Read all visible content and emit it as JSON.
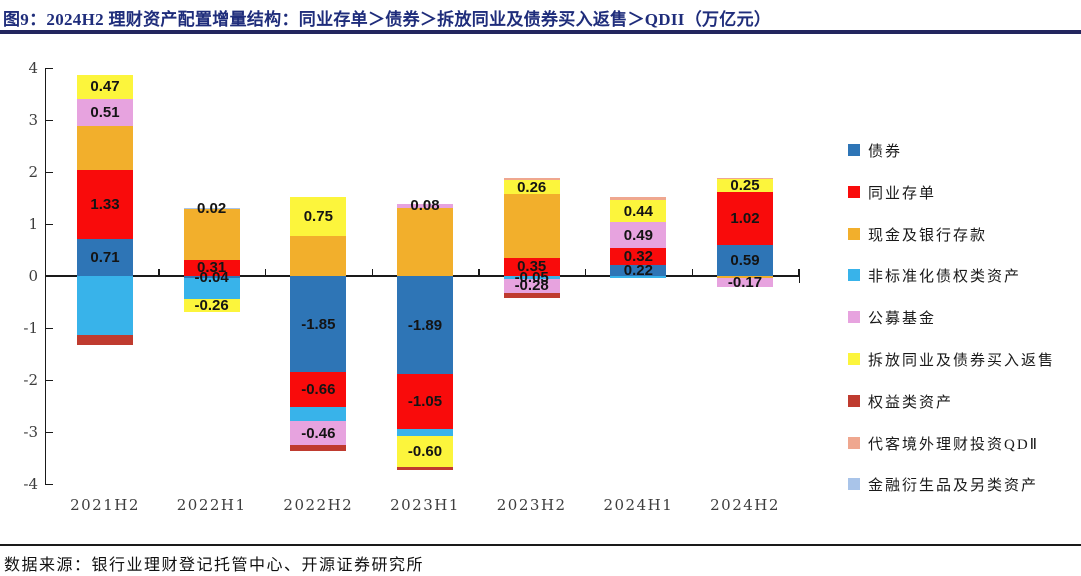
{
  "figure": {
    "title": "图9：2024H2 理财资产配置增量结构：同业存单＞债券＞拆放同业及债券买入返售＞QDII（万亿元）",
    "source": "数据来源：银行业理财登记托管中心、开源证券研究所"
  },
  "chart_data": {
    "type": "bar",
    "stacked": true,
    "title": "2024H2 理财资产配置增量结构：同业存单＞债券＞拆放同业及债券买入返售＞QDII",
    "unit": "万亿元",
    "categories": [
      "2021H2",
      "2022H1",
      "2022H2",
      "2023H1",
      "2023H2",
      "2024H1",
      "2024H2"
    ],
    "ylim": [
      -4,
      4
    ],
    "yticks": [
      4,
      3,
      2,
      1,
      0,
      -1,
      -2,
      -3,
      -4
    ],
    "grid": false,
    "legend_position": "right",
    "series": [
      {
        "name": "债券",
        "color": "#2E75B6",
        "values": [
          0.71,
          -0.04,
          -1.85,
          -1.89,
          0,
          0.22,
          0.59
        ],
        "labels": [
          "0.71",
          "-0.04",
          "-1.85",
          "-1.89",
          "",
          "0.22",
          "0.59"
        ]
      },
      {
        "name": "同业存单",
        "color": "#F90B0B",
        "values": [
          1.33,
          0.31,
          -0.66,
          -1.05,
          0.35,
          0.32,
          1.02
        ],
        "labels": [
          "1.33",
          "0.31",
          "-0.66",
          "-1.05",
          "0.35",
          "0.32",
          "1.02"
        ]
      },
      {
        "name": "现金及银行存款",
        "color": "#F2AF2C",
        "values": [
          0.85,
          0.97,
          0.76,
          1.31,
          1.23,
          0,
          -0.04
        ],
        "labels": [
          "",
          "",
          "",
          "",
          "",
          "",
          ""
        ]
      },
      {
        "name": "非标准化债权类资产",
        "color": "#38B3EA",
        "values": [
          -1.13,
          -0.4,
          -0.28,
          -0.13,
          -0.05,
          -0.04,
          0
        ],
        "labels": [
          "",
          "",
          "",
          "",
          "-0.05",
          "",
          ""
        ]
      },
      {
        "name": "公募基金",
        "color": "#E7A3DF",
        "values": [
          0.51,
          0,
          -0.46,
          0.08,
          -0.28,
          0.49,
          -0.17
        ],
        "labels": [
          "0.51",
          "",
          "-0.46",
          "0.08",
          "-0.28",
          "0.49",
          "-0.17"
        ]
      },
      {
        "name": "拆放同业及债券买入返售",
        "color": "#FCF53C",
        "values": [
          0.47,
          -0.26,
          0.75,
          -0.6,
          0.26,
          0.44,
          0.25
        ],
        "labels": [
          "0.47",
          "-0.26",
          "0.75",
          "-0.60",
          "0.26",
          "0.44",
          "0.25"
        ]
      },
      {
        "name": "权益类资产",
        "color": "#BF3B2F",
        "values": [
          -0.19,
          0,
          -0.12,
          -0.06,
          -0.1,
          0,
          0
        ],
        "labels": [
          "",
          "",
          "",
          "",
          "",
          "",
          ""
        ]
      },
      {
        "name": "代客境外理财投资QDⅡ",
        "color": "#EFA78F",
        "values": [
          0,
          0,
          0,
          0,
          0.04,
          0.04,
          0.02
        ],
        "labels": [
          "",
          "",
          "",
          "",
          "",
          "",
          ""
        ]
      },
      {
        "name": "金融衍生品及另类资产",
        "color": "#A9C4E9",
        "values": [
          0,
          0.02,
          0,
          0,
          0,
          0,
          0
        ],
        "labels": [
          "",
          "0.02",
          "",
          "",
          "",
          "",
          ""
        ]
      }
    ]
  }
}
